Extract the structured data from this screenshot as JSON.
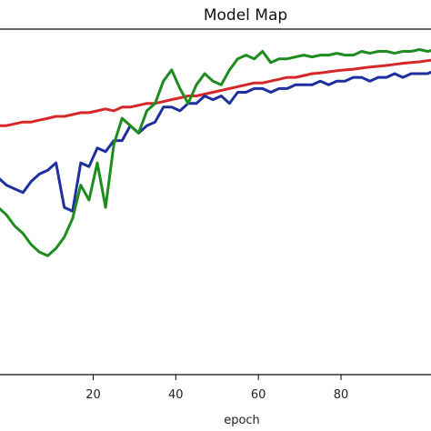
{
  "chart_data": {
    "type": "line",
    "title": "Model Map",
    "xlabel": "epoch",
    "ylabel": "",
    "xlim": [
      -3,
      104
    ],
    "ylim": [
      0.05,
      0.98
    ],
    "xticks": [
      20,
      40,
      60,
      80
    ],
    "grid": false,
    "series": [
      {
        "color": "#d62728",
        "x": [
          -3,
          -1,
          1,
          3,
          5,
          7,
          9,
          11,
          13,
          15,
          17,
          19,
          21,
          23,
          25,
          27,
          29,
          31,
          33,
          35,
          37,
          39,
          41,
          43,
          45,
          47,
          49,
          51,
          53,
          55,
          57,
          59,
          61,
          63,
          65,
          67,
          69,
          71,
          73,
          75,
          77,
          79,
          81,
          83,
          85,
          87,
          89,
          91,
          93,
          95,
          97,
          99,
          101,
          103,
          104
        ],
        "values": [
          0.72,
          0.72,
          0.725,
          0.73,
          0.73,
          0.735,
          0.74,
          0.745,
          0.745,
          0.75,
          0.755,
          0.755,
          0.76,
          0.765,
          0.76,
          0.77,
          0.77,
          0.775,
          0.78,
          0.78,
          0.785,
          0.79,
          0.795,
          0.8,
          0.8,
          0.805,
          0.81,
          0.815,
          0.82,
          0.825,
          0.83,
          0.835,
          0.835,
          0.84,
          0.845,
          0.85,
          0.85,
          0.855,
          0.86,
          0.862,
          0.865,
          0.868,
          0.87,
          0.872,
          0.875,
          0.878,
          0.88,
          0.882,
          0.885,
          0.888,
          0.89,
          0.892,
          0.895,
          0.898,
          0.9
        ]
      },
      {
        "color": "#1f2fa0",
        "x": [
          -3,
          -1,
          1,
          3,
          5,
          7,
          9,
          11,
          13,
          15,
          17,
          19,
          21,
          23,
          25,
          27,
          29,
          31,
          33,
          35,
          37,
          39,
          41,
          43,
          45,
          47,
          49,
          51,
          53,
          55,
          57,
          59,
          61,
          63,
          65,
          67,
          69,
          71,
          73,
          75,
          77,
          79,
          81,
          83,
          85,
          87,
          89,
          91,
          93,
          95,
          97,
          99,
          101,
          103,
          104
        ],
        "values": [
          0.58,
          0.56,
          0.55,
          0.54,
          0.57,
          0.59,
          0.6,
          0.62,
          0.5,
          0.49,
          0.62,
          0.61,
          0.66,
          0.65,
          0.68,
          0.68,
          0.72,
          0.7,
          0.72,
          0.73,
          0.77,
          0.77,
          0.76,
          0.78,
          0.78,
          0.8,
          0.79,
          0.8,
          0.78,
          0.81,
          0.81,
          0.82,
          0.82,
          0.81,
          0.82,
          0.82,
          0.83,
          0.83,
          0.83,
          0.84,
          0.83,
          0.84,
          0.84,
          0.85,
          0.85,
          0.84,
          0.85,
          0.85,
          0.86,
          0.85,
          0.86,
          0.86,
          0.86,
          0.87,
          0.86
        ]
      },
      {
        "color": "#1e8c1e",
        "x": [
          -3,
          -1,
          1,
          3,
          5,
          7,
          9,
          11,
          13,
          15,
          17,
          19,
          21,
          23,
          25,
          27,
          29,
          31,
          33,
          35,
          37,
          39,
          41,
          43,
          45,
          47,
          49,
          51,
          53,
          55,
          57,
          59,
          61,
          63,
          65,
          67,
          69,
          71,
          73,
          75,
          77,
          79,
          81,
          83,
          85,
          87,
          89,
          91,
          93,
          95,
          97,
          99,
          101,
          103,
          104
        ],
        "values": [
          0.5,
          0.48,
          0.45,
          0.43,
          0.4,
          0.38,
          0.37,
          0.39,
          0.42,
          0.47,
          0.56,
          0.52,
          0.62,
          0.5,
          0.67,
          0.74,
          0.72,
          0.7,
          0.76,
          0.78,
          0.84,
          0.87,
          0.82,
          0.78,
          0.83,
          0.86,
          0.84,
          0.83,
          0.87,
          0.9,
          0.91,
          0.9,
          0.92,
          0.89,
          0.9,
          0.9,
          0.905,
          0.91,
          0.905,
          0.91,
          0.91,
          0.915,
          0.91,
          0.91,
          0.92,
          0.915,
          0.92,
          0.92,
          0.915,
          0.92,
          0.92,
          0.925,
          0.92,
          0.925,
          0.93
        ]
      }
    ]
  }
}
